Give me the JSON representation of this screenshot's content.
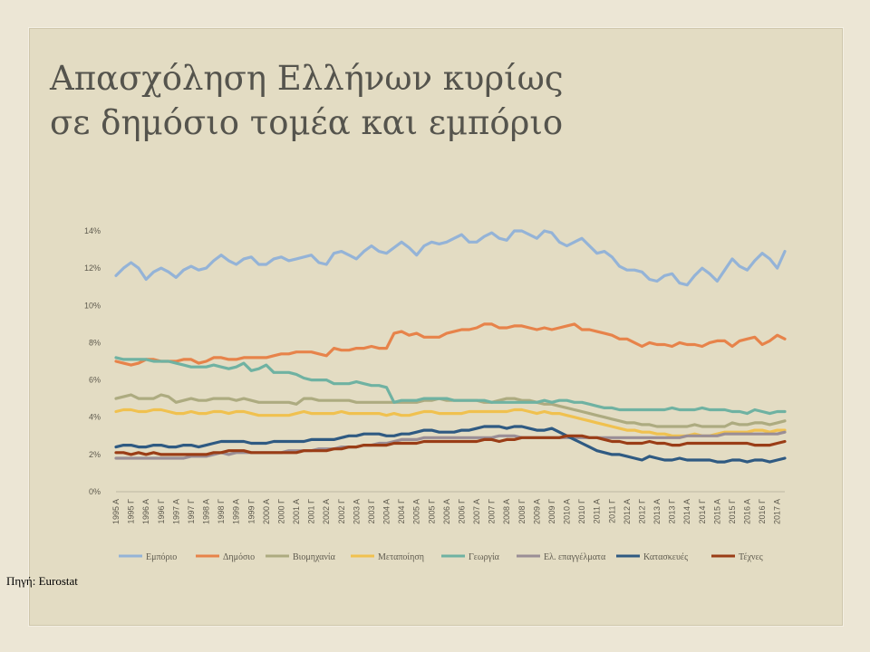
{
  "page": {
    "title_line1": "Απασχόληση Ελλήνων κυρίως",
    "title_line2": "σε δημόσιο τομέα και εμπόριο",
    "source": "Πηγή: Eurostat"
  },
  "chart_data": {
    "type": "line",
    "ylim": [
      0,
      14
    ],
    "y_ticks": [
      0,
      2,
      4,
      6,
      8,
      10,
      12,
      14
    ],
    "y_tick_labels": [
      "0%",
      "2%",
      "4%",
      "6%",
      "8%",
      "10%",
      "12%",
      "14%"
    ],
    "x_tick_labels": [
      "1995 Α",
      "1995 Γ",
      "1996 Α",
      "1996 Γ",
      "1997 Α",
      "1997 Γ",
      "1998 Α",
      "1998 Γ",
      "1999 Α",
      "1999 Γ",
      "2000 Α",
      "2000 Γ",
      "2001 Α",
      "2001 Γ",
      "2002 Α",
      "2002 Γ",
      "2003 Α",
      "2003 Γ",
      "2004 Α",
      "2004 Γ",
      "2005 Α",
      "2005 Γ",
      "2006 Α",
      "2006 Γ",
      "2007 Α",
      "2007 Γ",
      "2008 Α",
      "2008 Γ",
      "2009 Α",
      "2009 Γ",
      "2010 Α",
      "2010 Γ",
      "2011 Α",
      "2011 Γ",
      "2012 Α",
      "2012 Γ",
      "2013 Α",
      "2013 Γ",
      "2014 Α",
      "2014 Γ",
      "2015 Α",
      "2015 Γ",
      "2016 Α",
      "2016 Γ",
      "2017 Α"
    ],
    "x_tick_step_quarters": 2,
    "grid": false,
    "legend_position": "bottom",
    "series": [
      {
        "name": "Εμπόριο",
        "color": "#94b3d7",
        "values": [
          11.6,
          12.0,
          12.3,
          12.0,
          11.4,
          11.8,
          12.0,
          11.8,
          11.5,
          11.9,
          12.1,
          11.9,
          12.0,
          12.4,
          12.7,
          12.4,
          12.2,
          12.5,
          12.6,
          12.2,
          12.2,
          12.5,
          12.6,
          12.4,
          12.5,
          12.6,
          12.7,
          12.3,
          12.2,
          12.8,
          12.9,
          12.7,
          12.5,
          12.9,
          13.2,
          12.9,
          12.8,
          13.1,
          13.4,
          13.1,
          12.7,
          13.2,
          13.4,
          13.3,
          13.4,
          13.6,
          13.8,
          13.4,
          13.4,
          13.7,
          13.9,
          13.6,
          13.5,
          14.0,
          14.0,
          13.8,
          13.6,
          14.0,
          13.9,
          13.4,
          13.2,
          13.4,
          13.6,
          13.2,
          12.8,
          12.9,
          12.6,
          12.1,
          11.9,
          11.9,
          11.8,
          11.4,
          11.3,
          11.6,
          11.7,
          11.2,
          11.1,
          11.6,
          12.0,
          11.7,
          11.3,
          11.9,
          12.5,
          12.1,
          11.9,
          12.4,
          12.8,
          12.5,
          12.0,
          12.9
        ]
      },
      {
        "name": "Δημόσιο",
        "color": "#e7834a",
        "values": [
          7.0,
          6.9,
          6.8,
          6.9,
          7.1,
          7.1,
          7.0,
          7.0,
          7.0,
          7.1,
          7.1,
          6.9,
          7.0,
          7.2,
          7.2,
          7.1,
          7.1,
          7.2,
          7.2,
          7.2,
          7.2,
          7.3,
          7.4,
          7.4,
          7.5,
          7.5,
          7.5,
          7.4,
          7.3,
          7.7,
          7.6,
          7.6,
          7.7,
          7.7,
          7.8,
          7.7,
          7.7,
          8.5,
          8.6,
          8.4,
          8.5,
          8.3,
          8.3,
          8.3,
          8.5,
          8.6,
          8.7,
          8.7,
          8.8,
          9.0,
          9.0,
          8.8,
          8.8,
          8.9,
          8.9,
          8.8,
          8.7,
          8.8,
          8.7,
          8.8,
          8.9,
          9.0,
          8.7,
          8.7,
          8.6,
          8.5,
          8.4,
          8.2,
          8.2,
          8.0,
          7.8,
          8.0,
          7.9,
          7.9,
          7.8,
          8.0,
          7.9,
          7.9,
          7.8,
          8.0,
          8.1,
          8.1,
          7.8,
          8.1,
          8.2,
          8.3,
          7.9,
          8.1,
          8.4,
          8.2
        ]
      },
      {
        "name": "Βιομηχανία",
        "color": "#adab80",
        "values": [
          5.0,
          5.1,
          5.2,
          5.0,
          5.0,
          5.0,
          5.2,
          5.1,
          4.8,
          4.9,
          5.0,
          4.9,
          4.9,
          5.0,
          5.0,
          5.0,
          4.9,
          5.0,
          4.9,
          4.8,
          4.8,
          4.8,
          4.8,
          4.8,
          4.7,
          5.0,
          5.0,
          4.9,
          4.9,
          4.9,
          4.9,
          4.9,
          4.8,
          4.8,
          4.8,
          4.8,
          4.8,
          4.8,
          4.8,
          4.8,
          4.8,
          4.9,
          4.9,
          5.0,
          4.9,
          4.9,
          4.9,
          4.9,
          4.9,
          4.8,
          4.8,
          4.9,
          5.0,
          5.0,
          4.9,
          4.9,
          4.8,
          4.7,
          4.7,
          4.6,
          4.5,
          4.4,
          4.3,
          4.2,
          4.1,
          4.0,
          3.9,
          3.8,
          3.7,
          3.7,
          3.6,
          3.6,
          3.5,
          3.5,
          3.5,
          3.5,
          3.5,
          3.6,
          3.5,
          3.5,
          3.5,
          3.5,
          3.7,
          3.6,
          3.6,
          3.7,
          3.7,
          3.6,
          3.7,
          3.8
        ]
      },
      {
        "name": "Μεταποίηση",
        "color": "#f0c14f",
        "values": [
          4.3,
          4.4,
          4.4,
          4.3,
          4.3,
          4.4,
          4.4,
          4.3,
          4.2,
          4.2,
          4.3,
          4.2,
          4.2,
          4.3,
          4.3,
          4.2,
          4.3,
          4.3,
          4.2,
          4.1,
          4.1,
          4.1,
          4.1,
          4.1,
          4.2,
          4.3,
          4.2,
          4.2,
          4.2,
          4.2,
          4.3,
          4.2,
          4.2,
          4.2,
          4.2,
          4.2,
          4.1,
          4.2,
          4.1,
          4.1,
          4.2,
          4.3,
          4.3,
          4.2,
          4.2,
          4.2,
          4.2,
          4.3,
          4.3,
          4.3,
          4.3,
          4.3,
          4.3,
          4.4,
          4.4,
          4.3,
          4.2,
          4.3,
          4.2,
          4.2,
          4.1,
          4.0,
          3.9,
          3.8,
          3.7,
          3.6,
          3.5,
          3.4,
          3.3,
          3.3,
          3.2,
          3.2,
          3.1,
          3.1,
          3.0,
          3.0,
          3.0,
          3.1,
          3.0,
          3.0,
          3.1,
          3.2,
          3.2,
          3.2,
          3.2,
          3.3,
          3.3,
          3.2,
          3.3,
          3.3
        ]
      },
      {
        "name": "Γεωργία",
        "color": "#6fb2a2",
        "values": [
          7.2,
          7.1,
          7.1,
          7.1,
          7.1,
          7.0,
          7.0,
          7.0,
          6.9,
          6.8,
          6.7,
          6.7,
          6.7,
          6.8,
          6.7,
          6.6,
          6.7,
          6.9,
          6.5,
          6.6,
          6.8,
          6.4,
          6.4,
          6.4,
          6.3,
          6.1,
          6.0,
          6.0,
          6.0,
          5.8,
          5.8,
          5.8,
          5.9,
          5.8,
          5.7,
          5.7,
          5.6,
          4.8,
          4.9,
          4.9,
          4.9,
          5.0,
          5.0,
          5.0,
          5.0,
          4.9,
          4.9,
          4.9,
          4.9,
          4.9,
          4.8,
          4.8,
          4.8,
          4.8,
          4.8,
          4.8,
          4.8,
          4.9,
          4.8,
          4.9,
          4.9,
          4.8,
          4.8,
          4.7,
          4.6,
          4.5,
          4.5,
          4.4,
          4.4,
          4.4,
          4.4,
          4.4,
          4.4,
          4.4,
          4.5,
          4.4,
          4.4,
          4.4,
          4.5,
          4.4,
          4.4,
          4.4,
          4.3,
          4.3,
          4.2,
          4.4,
          4.3,
          4.2,
          4.3,
          4.3
        ]
      },
      {
        "name": "Ελ. επαγγέλματα",
        "color": "#9a8e96",
        "values": [
          1.8,
          1.8,
          1.8,
          1.8,
          1.8,
          1.8,
          1.8,
          1.8,
          1.8,
          1.8,
          1.9,
          1.9,
          1.9,
          2.0,
          2.1,
          2.0,
          2.1,
          2.1,
          2.1,
          2.1,
          2.1,
          2.1,
          2.1,
          2.2,
          2.2,
          2.2,
          2.2,
          2.3,
          2.3,
          2.3,
          2.4,
          2.4,
          2.4,
          2.5,
          2.5,
          2.6,
          2.6,
          2.7,
          2.8,
          2.8,
          2.8,
          2.9,
          2.9,
          2.9,
          2.9,
          2.9,
          2.9,
          2.9,
          2.9,
          2.9,
          2.9,
          3.0,
          3.0,
          3.0,
          2.9,
          2.9,
          2.9,
          2.9,
          2.9,
          2.9,
          2.9,
          2.9,
          2.9,
          2.9,
          2.9,
          2.9,
          2.9,
          2.9,
          2.9,
          2.9,
          2.9,
          2.9,
          2.9,
          2.9,
          2.9,
          2.9,
          3.0,
          3.0,
          3.0,
          3.0,
          3.0,
          3.1,
          3.1,
          3.1,
          3.1,
          3.1,
          3.1,
          3.1,
          3.1,
          3.2
        ]
      },
      {
        "name": "Κατασκευές",
        "color": "#2f5a82",
        "values": [
          2.4,
          2.5,
          2.5,
          2.4,
          2.4,
          2.5,
          2.5,
          2.4,
          2.4,
          2.5,
          2.5,
          2.4,
          2.5,
          2.6,
          2.7,
          2.7,
          2.7,
          2.7,
          2.6,
          2.6,
          2.6,
          2.7,
          2.7,
          2.7,
          2.7,
          2.7,
          2.8,
          2.8,
          2.8,
          2.8,
          2.9,
          3.0,
          3.0,
          3.1,
          3.1,
          3.1,
          3.0,
          3.0,
          3.1,
          3.1,
          3.2,
          3.3,
          3.3,
          3.2,
          3.2,
          3.2,
          3.3,
          3.3,
          3.4,
          3.5,
          3.5,
          3.5,
          3.4,
          3.5,
          3.5,
          3.4,
          3.3,
          3.3,
          3.4,
          3.2,
          3.0,
          2.8,
          2.6,
          2.4,
          2.2,
          2.1,
          2.0,
          2.0,
          1.9,
          1.8,
          1.7,
          1.9,
          1.8,
          1.7,
          1.7,
          1.8,
          1.7,
          1.7,
          1.7,
          1.7,
          1.6,
          1.6,
          1.7,
          1.7,
          1.6,
          1.7,
          1.7,
          1.6,
          1.7,
          1.8
        ]
      },
      {
        "name": "Τέχνες",
        "color": "#9a3d16",
        "values": [
          2.1,
          2.1,
          2.0,
          2.1,
          2.0,
          2.1,
          2.0,
          2.0,
          2.0,
          2.0,
          2.0,
          2.0,
          2.0,
          2.1,
          2.1,
          2.2,
          2.2,
          2.2,
          2.1,
          2.1,
          2.1,
          2.1,
          2.1,
          2.1,
          2.1,
          2.2,
          2.2,
          2.2,
          2.2,
          2.3,
          2.3,
          2.4,
          2.4,
          2.5,
          2.5,
          2.5,
          2.5,
          2.6,
          2.6,
          2.6,
          2.6,
          2.7,
          2.7,
          2.7,
          2.7,
          2.7,
          2.7,
          2.7,
          2.7,
          2.8,
          2.8,
          2.7,
          2.8,
          2.8,
          2.9,
          2.9,
          2.9,
          2.9,
          2.9,
          2.9,
          3.0,
          3.0,
          3.0,
          2.9,
          2.9,
          2.8,
          2.7,
          2.7,
          2.6,
          2.6,
          2.6,
          2.7,
          2.6,
          2.6,
          2.5,
          2.5,
          2.6,
          2.6,
          2.6,
          2.6,
          2.6,
          2.6,
          2.6,
          2.6,
          2.6,
          2.5,
          2.5,
          2.5,
          2.6,
          2.7
        ]
      }
    ]
  }
}
